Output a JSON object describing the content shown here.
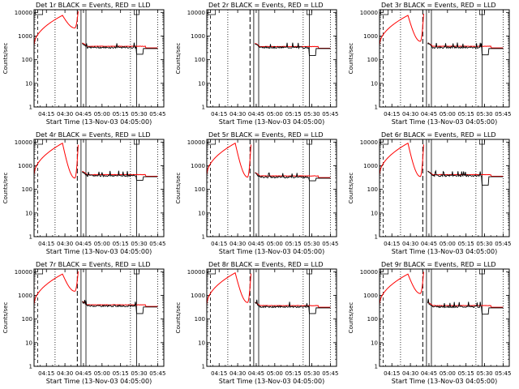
{
  "figure": {
    "xlabel": "Start Time (13-Nov-03 04:05:00)",
    "ylabel": "Counts/sec",
    "x_tick_labels": [
      "04:15",
      "04:30",
      "04:45",
      "05:00",
      "05:15",
      "05:30",
      "05:45"
    ],
    "y_tick_labels": [
      "1",
      "10",
      "100",
      "1000",
      "10000"
    ],
    "colors": {
      "events": "#000000",
      "lld": "#ff0000",
      "axes": "#000000",
      "background": "#ffffff"
    }
  },
  "chart_data": [
    {
      "type": "line",
      "title": "Det 1r BLACK = Events, RED = LLD",
      "xlabel": "Start Time (13-Nov-03 04:05:00)",
      "ylabel": "Counts/sec",
      "x_range": [
        "04:05",
        "05:50"
      ],
      "ylim": [
        1,
        13000
      ],
      "y_scale": "log",
      "grid": false,
      "lld_peak_time": "04:28",
      "lld_peak": 7500,
      "lld_trough_time": "04:38",
      "lld_trough": 2200,
      "lld_end_time": "04:41",
      "events_level": 330,
      "events_dip": 170,
      "lld_level": 370,
      "series": [
        {
          "name": "BLACK = Events",
          "x": [
            "04:44",
            "04:50",
            "05:00",
            "05:10",
            "05:20",
            "05:25",
            "05:30",
            "05:45"
          ],
          "y": [
            480,
            380,
            360,
            350,
            360,
            340,
            170,
            300
          ]
        },
        {
          "name": "RED = LLD",
          "x": [
            "04:05",
            "04:28",
            "04:38",
            "04:41",
            "04:44",
            "05:00",
            "05:20",
            "05:45"
          ],
          "y": [
            400,
            7500,
            2200,
            12000,
            520,
            380,
            400,
            330
          ]
        }
      ]
    },
    {
      "type": "line",
      "title": "Det 2r BLACK = Events, RED = LLD",
      "xlabel": "Start Time (13-Nov-03 04:05:00)",
      "ylabel": "Counts/sec",
      "x_range": [
        "04:05",
        "05:50"
      ],
      "ylim": [
        1,
        13000
      ],
      "y_scale": "log",
      "grid": false,
      "lld_peak_time": null,
      "lld_peak": null,
      "lld_trough_time": null,
      "lld_trough": null,
      "lld_end_time": null,
      "events_level": 330,
      "events_dip": 150,
      "lld_level": 360,
      "series": [
        {
          "name": "BLACK = Events",
          "x": [
            "04:50",
            "05:00",
            "05:10",
            "05:20",
            "05:25",
            "05:30",
            "05:45"
          ],
          "y": [
            350,
            340,
            330,
            350,
            330,
            150,
            280
          ]
        },
        {
          "name": "RED = LLD",
          "x": [
            "04:50",
            "05:00",
            "05:20",
            "05:45"
          ],
          "y": [
            380,
            360,
            380,
            300
          ]
        }
      ]
    },
    {
      "type": "line",
      "title": "Det 3r BLACK = Events, RED = LLD",
      "xlabel": "Start Time (13-Nov-03 04:05:00)",
      "ylabel": "Counts/sec",
      "x_range": [
        "04:05",
        "05:50"
      ],
      "ylim": [
        1,
        13000
      ],
      "y_scale": "log",
      "grid": false,
      "lld_peak_time": "04:28",
      "lld_peak": 7500,
      "lld_trough_time": "04:38",
      "lld_trough": 600,
      "lld_end_time": "04:41",
      "events_level": 330,
      "events_dip": 160,
      "lld_level": 370,
      "series": [
        {
          "name": "BLACK = Events",
          "x": [
            "04:44",
            "04:50",
            "05:00",
            "05:10",
            "05:20",
            "05:25",
            "05:30",
            "05:45"
          ],
          "y": [
            500,
            380,
            360,
            350,
            360,
            330,
            160,
            300
          ]
        },
        {
          "name": "RED = LLD",
          "x": [
            "04:05",
            "04:28",
            "04:38",
            "04:41",
            "04:44",
            "05:00",
            "05:20",
            "05:45"
          ],
          "y": [
            400,
            7500,
            600,
            12000,
            520,
            380,
            400,
            330
          ]
        }
      ]
    },
    {
      "type": "line",
      "title": "Det 4r BLACK = Events, RED = LLD",
      "xlabel": "Start Time (13-Nov-03 04:05:00)",
      "ylabel": "Counts/sec",
      "x_range": [
        "04:05",
        "05:50"
      ],
      "ylim": [
        1,
        13000
      ],
      "y_scale": "log",
      "grid": false,
      "lld_peak_time": "04:28",
      "lld_peak": 9000,
      "lld_trough_time": "04:38",
      "lld_trough": 300,
      "lld_end_time": "04:41",
      "events_level": 380,
      "events_dip": 240,
      "lld_level": 420,
      "series": [
        {
          "name": "BLACK = Events",
          "x": [
            "04:44",
            "04:50",
            "05:00",
            "05:10",
            "05:20",
            "05:25",
            "05:30",
            "05:45"
          ],
          "y": [
            560,
            430,
            400,
            390,
            400,
            380,
            240,
            320
          ]
        },
        {
          "name": "RED = LLD",
          "x": [
            "04:05",
            "04:28",
            "04:38",
            "04:41",
            "04:44",
            "05:00",
            "05:20",
            "05:45"
          ],
          "y": [
            400,
            9000,
            300,
            12000,
            600,
            420,
            430,
            330
          ]
        }
      ]
    },
    {
      "type": "line",
      "title": "Det 5r BLACK = Events, RED = LLD",
      "xlabel": "Start Time (13-Nov-03 04:05:00)",
      "ylabel": "Counts/sec",
      "x_range": [
        "04:05",
        "05:50"
      ],
      "ylim": [
        1,
        13000
      ],
      "y_scale": "log",
      "grid": false,
      "lld_peak_time": "04:28",
      "lld_peak": 9000,
      "lld_trough_time": "04:38",
      "lld_trough": 330,
      "lld_end_time": "04:41",
      "events_level": 330,
      "events_dip": 230,
      "lld_level": 370,
      "series": [
        {
          "name": "BLACK = Events",
          "x": [
            "04:44",
            "04:50",
            "05:00",
            "05:10",
            "05:20",
            "05:25",
            "05:30",
            "05:45"
          ],
          "y": [
            520,
            380,
            360,
            340,
            340,
            330,
            230,
            290
          ]
        },
        {
          "name": "RED = LLD",
          "x": [
            "04:05",
            "04:28",
            "04:38",
            "04:41",
            "04:44",
            "05:00",
            "05:20",
            "05:45"
          ],
          "y": [
            400,
            9000,
            330,
            12000,
            560,
            380,
            360,
            310
          ]
        }
      ]
    },
    {
      "type": "line",
      "title": "Det 6r BLACK = Events, RED = LLD",
      "xlabel": "Start Time (13-Nov-03 04:05:00)",
      "ylabel": "Counts/sec",
      "x_range": [
        "04:05",
        "05:50"
      ],
      "ylim": [
        1,
        13000
      ],
      "y_scale": "log",
      "grid": false,
      "lld_peak_time": "04:28",
      "lld_peak": 9000,
      "lld_trough_time": "04:38",
      "lld_trough": 350,
      "lld_end_time": "04:41",
      "events_level": 380,
      "events_dip": 150,
      "lld_level": 420,
      "series": [
        {
          "name": "BLACK = Events",
          "x": [
            "04:44",
            "04:50",
            "05:00",
            "05:10",
            "05:20",
            "05:25",
            "05:30",
            "05:45"
          ],
          "y": [
            560,
            430,
            400,
            390,
            400,
            380,
            150,
            300
          ]
        },
        {
          "name": "RED = LLD",
          "x": [
            "04:05",
            "04:28",
            "04:38",
            "04:41",
            "04:44",
            "05:00",
            "05:20",
            "05:45"
          ],
          "y": [
            400,
            9000,
            350,
            12000,
            600,
            420,
            430,
            320
          ]
        }
      ]
    },
    {
      "type": "line",
      "title": "Det 7r BLACK = Events, RED = LLD",
      "xlabel": "Start Time (13-Nov-03 04:05:00)",
      "ylabel": "Counts/sec",
      "x_range": [
        "04:05",
        "05:50"
      ],
      "ylim": [
        1,
        13000
      ],
      "y_scale": "log",
      "grid": false,
      "lld_peak_time": "04:28",
      "lld_peak": 8000,
      "lld_trough_time": "04:38",
      "lld_trough": 1500,
      "lld_end_time": "04:41",
      "events_level": 360,
      "events_dip": 170,
      "lld_level": 400,
      "series": [
        {
          "name": "BLACK = Events",
          "x": [
            "04:44",
            "04:50",
            "05:00",
            "05:10",
            "05:20",
            "05:25",
            "05:30",
            "05:45"
          ],
          "y": [
            520,
            400,
            380,
            370,
            380,
            360,
            170,
            310
          ]
        },
        {
          "name": "RED = LLD",
          "x": [
            "04:05",
            "04:28",
            "04:38",
            "04:41",
            "04:44",
            "05:00",
            "05:20",
            "05:45"
          ],
          "y": [
            400,
            8000,
            1500,
            12000,
            560,
            400,
            410,
            330
          ]
        }
      ]
    },
    {
      "type": "line",
      "title": "Det 8r BLACK = Events, RED = LLD",
      "xlabel": "Start Time (13-Nov-03 04:05:00)",
      "ylabel": "Counts/sec",
      "x_range": [
        "04:05",
        "05:50"
      ],
      "ylim": [
        1,
        13000
      ],
      "y_scale": "log",
      "grid": false,
      "lld_peak_time": "04:28",
      "lld_peak": 9000,
      "lld_trough_time": "04:38",
      "lld_trough": 500,
      "lld_end_time": "04:41",
      "events_level": 330,
      "events_dip": 170,
      "lld_level": 370,
      "series": [
        {
          "name": "BLACK = Events",
          "x": [
            "04:44",
            "04:50",
            "05:00",
            "05:10",
            "05:20",
            "05:25",
            "05:30",
            "05:45"
          ],
          "y": [
            520,
            380,
            360,
            350,
            360,
            330,
            170,
            290
          ]
        },
        {
          "name": "RED = LLD",
          "x": [
            "04:05",
            "04:28",
            "04:38",
            "04:41",
            "04:44",
            "05:00",
            "05:20",
            "05:45"
          ],
          "y": [
            400,
            9000,
            500,
            12000,
            560,
            380,
            380,
            310
          ]
        }
      ]
    },
    {
      "type": "line",
      "title": "Det 9r BLACK = Events, RED = LLD",
      "xlabel": "Start Time (13-Nov-03 04:05:00)",
      "ylabel": "Counts/sec",
      "x_range": [
        "04:05",
        "05:50"
      ],
      "ylim": [
        1,
        13000
      ],
      "y_scale": "log",
      "grid": false,
      "lld_peak_time": "04:28",
      "lld_peak": 8000,
      "lld_trough_time": "04:38",
      "lld_trough": 1200,
      "lld_end_time": "04:41",
      "events_level": 330,
      "events_dip": 160,
      "lld_level": 370,
      "series": [
        {
          "name": "BLACK = Events",
          "x": [
            "04:44",
            "04:50",
            "05:00",
            "05:10",
            "05:20",
            "05:25",
            "05:30",
            "05:45"
          ],
          "y": [
            500,
            380,
            360,
            350,
            360,
            330,
            160,
            300
          ]
        },
        {
          "name": "RED = LLD",
          "x": [
            "04:05",
            "04:28",
            "04:38",
            "04:41",
            "04:44",
            "05:00",
            "05:20",
            "05:45"
          ],
          "y": [
            400,
            8000,
            1200,
            12000,
            520,
            380,
            400,
            330
          ]
        }
      ]
    }
  ]
}
